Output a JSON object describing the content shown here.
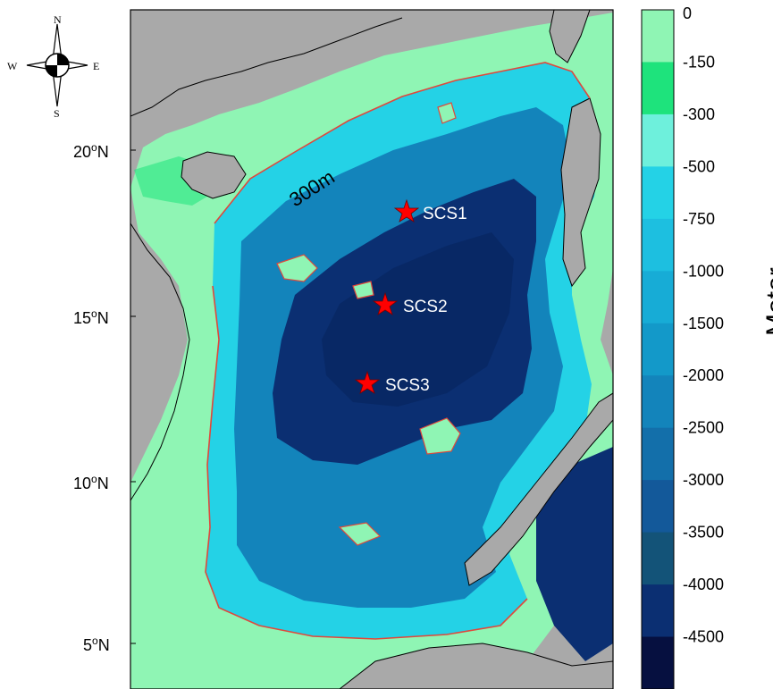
{
  "map": {
    "compass": {
      "n": "N",
      "s": "S",
      "e": "E",
      "w": "W"
    },
    "lat_ticks": [
      {
        "deg": "20",
        "hem": "N"
      },
      {
        "deg": "15",
        "hem": "N"
      },
      {
        "deg": "10",
        "hem": "N"
      },
      {
        "deg": "5",
        "hem": "N"
      }
    ],
    "isobath_label": "300m",
    "sites": [
      {
        "name": "SCS1",
        "color": "#ff0000"
      },
      {
        "name": "SCS2",
        "color": "#ff0000"
      },
      {
        "name": "SCS3",
        "color": "#ff0000"
      }
    ],
    "colors": {
      "land": "#a9a9a9",
      "coast_line": "#000000",
      "isobath_300": "#e0483c"
    }
  },
  "colorbar": {
    "title": "Meter",
    "levels": [
      {
        "label": "0",
        "color": "#8ff5b4"
      },
      {
        "label": "-150",
        "color": "#1ee37c"
      },
      {
        "label": "-300",
        "color": "#6ef0dc"
      },
      {
        "label": "-500",
        "color": "#24d2e6"
      },
      {
        "label": "-750",
        "color": "#1dbfe0"
      },
      {
        "label": "-1000",
        "color": "#17acd6"
      },
      {
        "label": "-1500",
        "color": "#1399c9"
      },
      {
        "label": "-2000",
        "color": "#1384bb"
      },
      {
        "label": "-2500",
        "color": "#136faa"
      },
      {
        "label": "-3000",
        "color": "#13599a"
      },
      {
        "label": "-3500",
        "color": "#135378"
      },
      {
        "label": "-4000",
        "color": "#0b2f72"
      },
      {
        "label": "-4500",
        "color": "#061040"
      }
    ]
  }
}
